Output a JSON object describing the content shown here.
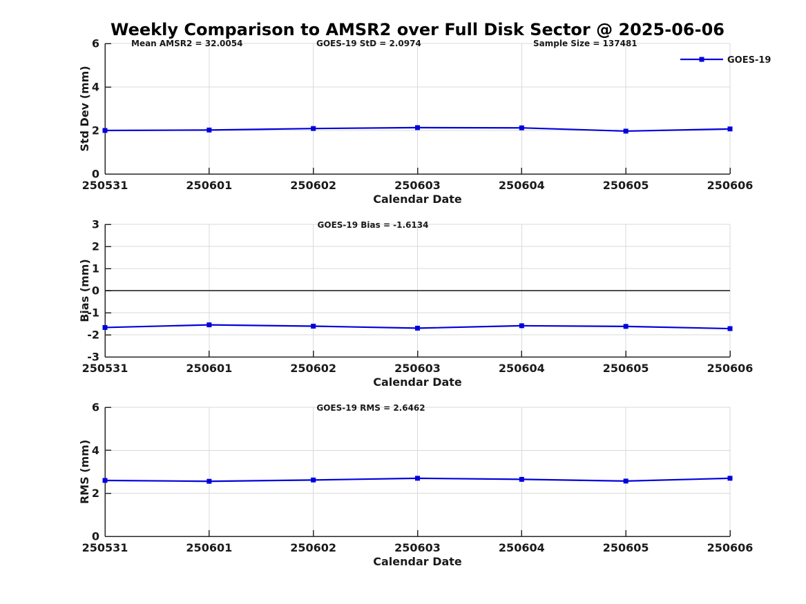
{
  "page_title": "Weekly Comparison to AMSR2 over Full Disk Sector @ 2025-06-06",
  "colors": {
    "series": "#0000dd",
    "grid": "#d9d9d9",
    "axis": "#262626",
    "text": "#1a1a1a",
    "zero_line": "#4d4d4d",
    "background": "#ffffff"
  },
  "chart_data": [
    {
      "type": "line",
      "annotations": [
        "Mean AMSR2 = 32.0054",
        "GOES-19 StD = 2.0974",
        "Sample Size = 137481"
      ],
      "categories": [
        "250531",
        "250601",
        "250602",
        "250603",
        "250604",
        "250605",
        "250606"
      ],
      "series": [
        {
          "name": "GOES-19",
          "marker": "square",
          "values": [
            2.0,
            2.02,
            2.09,
            2.13,
            2.12,
            1.97,
            2.07
          ]
        }
      ],
      "xlabel": "Calendar Date",
      "ylabel": "Std Dev (mm)",
      "ylim": [
        0,
        6
      ],
      "yticks": [
        0,
        2,
        4,
        6
      ],
      "grid": true,
      "legend": {
        "show": true,
        "label": "GOES-19",
        "position": "top-right"
      }
    },
    {
      "type": "line",
      "annotations": [
        "GOES-19 Bias  = -1.6134"
      ],
      "categories": [
        "250531",
        "250601",
        "250602",
        "250603",
        "250604",
        "250605",
        "250606"
      ],
      "series": [
        {
          "name": "GOES-19",
          "marker": "square",
          "values": [
            -1.67,
            -1.55,
            -1.61,
            -1.7,
            -1.59,
            -1.62,
            -1.72
          ]
        }
      ],
      "xlabel": "Calendar Date",
      "ylabel": "Bias (mm)",
      "ylim": [
        -3,
        3
      ],
      "yticks": [
        -3,
        -2,
        -1,
        0,
        1,
        2,
        3
      ],
      "grid": true,
      "zero_line": true
    },
    {
      "type": "line",
      "annotations": [
        "GOES-19 RMS = 2.6462"
      ],
      "categories": [
        "250531",
        "250601",
        "250602",
        "250603",
        "250604",
        "250605",
        "250606"
      ],
      "series": [
        {
          "name": "GOES-19",
          "marker": "square",
          "values": [
            2.6,
            2.56,
            2.62,
            2.7,
            2.65,
            2.57,
            2.7
          ]
        }
      ],
      "xlabel": "Calendar Date",
      "ylabel": "RMS (mm)",
      "ylim": [
        0,
        6
      ],
      "yticks": [
        0,
        2,
        4,
        6
      ],
      "grid": true
    }
  ]
}
